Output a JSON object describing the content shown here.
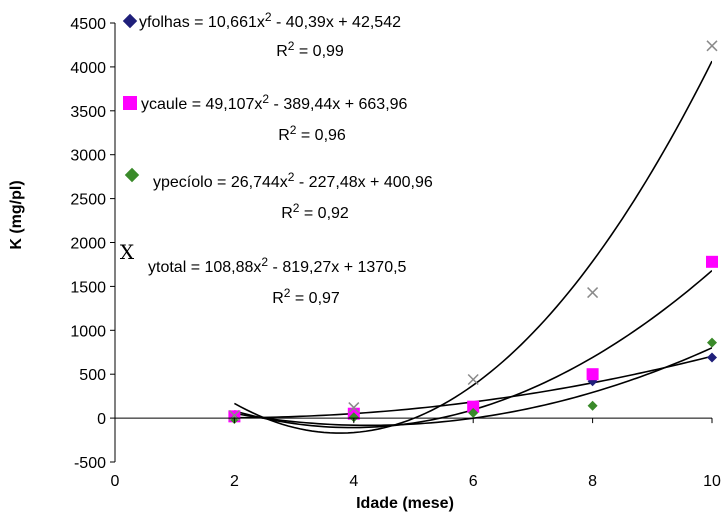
{
  "chart_data": {
    "type": "scatter",
    "xlabel": "Idade (mese)",
    "ylabel": "K (mg/pl)",
    "xlim": [
      0,
      10
    ],
    "ylim": [
      -500,
      4500
    ],
    "x_ticks": [
      "0",
      "2",
      "4",
      "6",
      "8",
      "10"
    ],
    "y_ticks": [
      "-500",
      "0",
      "500",
      "1000",
      "1500",
      "2000",
      "2500",
      "3000",
      "3500",
      "4000",
      "4500"
    ],
    "grid": false,
    "legend_placement": "top-left",
    "series": [
      {
        "name": "yfolhas",
        "marker": "diamond",
        "color": "#1f1f7a",
        "x": [
          2,
          4,
          6,
          8,
          10
        ],
        "y": [
          10,
          20,
          120,
          420,
          690
        ],
        "equation": "yfolhas = 10,661x² - 40,39x + 42,542",
        "equation_main": "yfolhas = 10,661x",
        "equation_tail": " - 40,39x + 42,542",
        "r2_text": "R² = 0,99",
        "r2_value": "= 0,99",
        "fit": [
          10.661,
          -40.39,
          42.542
        ]
      },
      {
        "name": "ycaule",
        "marker": "square",
        "color": "#ff00ff",
        "x": [
          2,
          4,
          6,
          8,
          10
        ],
        "y": [
          20,
          50,
          130,
          500,
          1780
        ],
        "equation": "ycaule = 49,107x² - 389,44x + 663,96",
        "equation_main": "ycaule = 49,107x",
        "equation_tail": " - 389,44x + 663,96",
        "r2_text": "R² = 0,96",
        "r2_value": "= 0,96",
        "fit": [
          49.107,
          -389.44,
          663.96
        ]
      },
      {
        "name": "ypecíolo",
        "marker": "diamond",
        "color": "#3a8a2a",
        "x": [
          2,
          4,
          6,
          8,
          10
        ],
        "y": [
          -10,
          10,
          60,
          140,
          860
        ],
        "equation": "ypecíolo = 26,744x² - 227,48x + 400,96",
        "equation_main": "ypecíolo = 26,744x",
        "equation_tail": " - 227,48x + 400,96",
        "r2_text": "R² = 0,92",
        "r2_value": "= 0,92",
        "fit": [
          26.744,
          -227.48,
          400.96
        ]
      },
      {
        "name": "ytotal",
        "marker": "x",
        "color": "#8a8a8a",
        "x": [
          2,
          4,
          6,
          8,
          10
        ],
        "y": [
          30,
          120,
          440,
          1430,
          4240
        ],
        "equation": "ytotal = 108,88x² - 819,27x + 1370,5",
        "equation_main": "ytotal = 108,88x",
        "equation_tail": " - 819,27x + 1370,5",
        "r2_text": "R² = 0,97",
        "r2_value": "= 0,97",
        "fit": [
          108.88,
          -819.27,
          1370.5
        ]
      }
    ],
    "legend_marker_x_glyph": "X",
    "superscript": "2",
    "r2_prefix": "R"
  }
}
